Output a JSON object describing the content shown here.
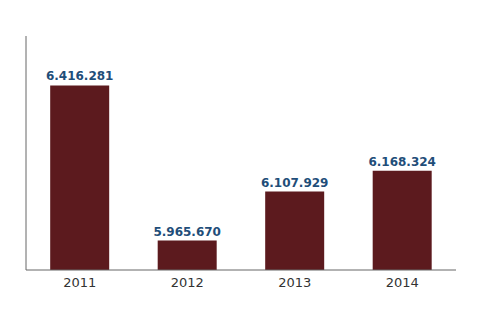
{
  "chart_data": {
    "type": "bar",
    "categories": [
      "2011",
      "2012",
      "2013",
      "2014"
    ],
    "values": [
      6416281,
      5965670,
      6107929,
      6168324
    ],
    "value_labels": [
      "6.416.281",
      "5.965.670",
      "6.107.929",
      "6.168.324"
    ],
    "color": "#5C1A1E",
    "ylim": [
      5880000,
      6560000
    ],
    "yticks": [],
    "grid": false,
    "data_labels": true,
    "tick_labels": "x"
  }
}
